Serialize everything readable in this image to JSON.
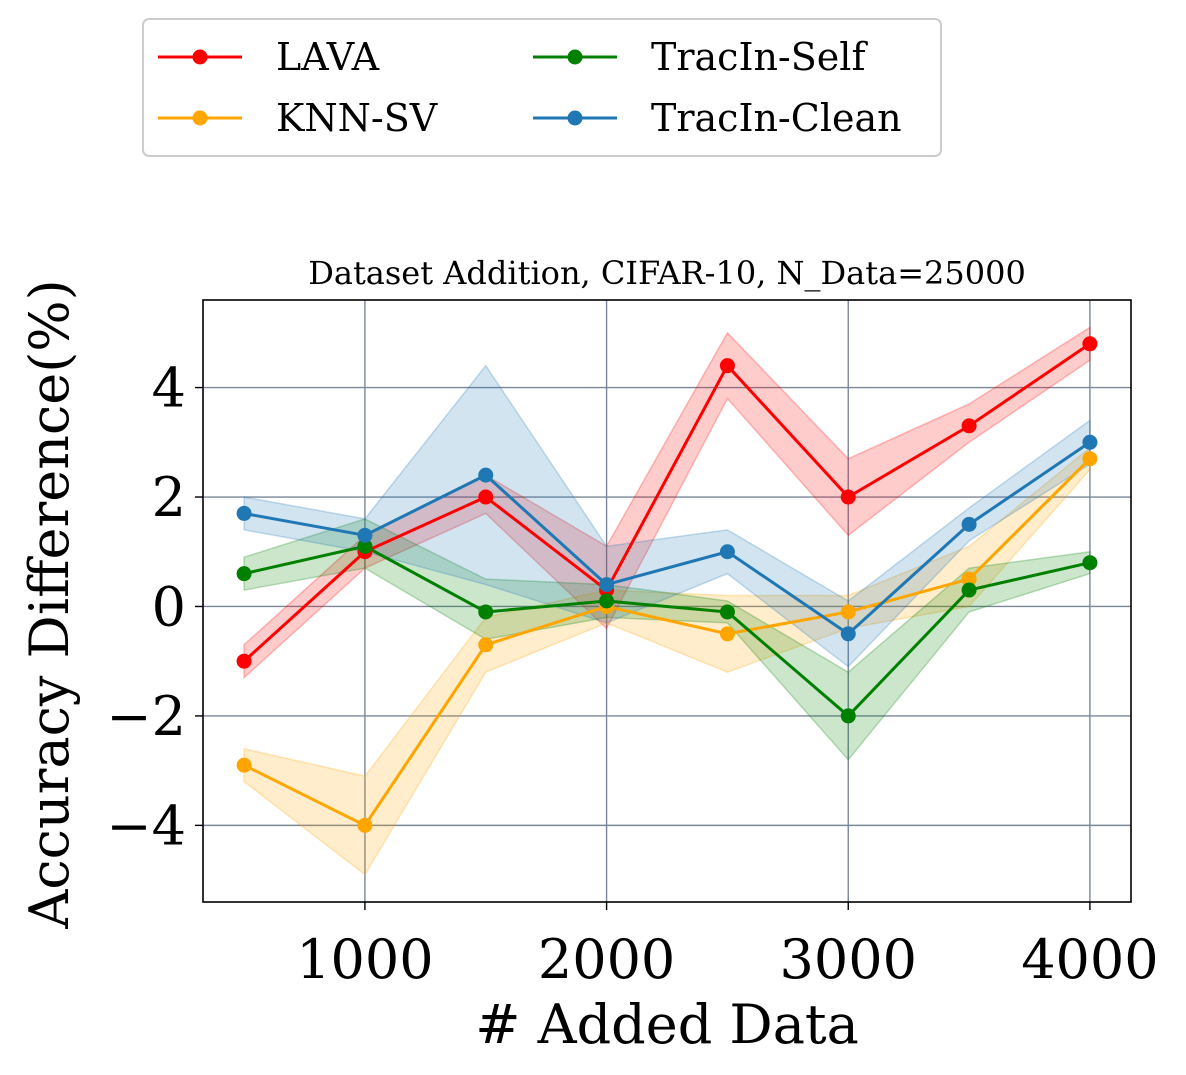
{
  "chart_data": {
    "type": "line",
    "title": "Dataset Addition, CIFAR-10, N_Data=25000",
    "xlabel": "# Added Data",
    "ylabel": "Accuracy Difference(%)",
    "xlim": [
      330,
      4170
    ],
    "ylim": [
      -5.4,
      5.6
    ],
    "xticks": [
      1000,
      2000,
      3000,
      4000
    ],
    "yticks": [
      -4,
      -2,
      0,
      2,
      4
    ],
    "xtick_labels": [
      "1000",
      "2000",
      "3000",
      "4000"
    ],
    "ytick_labels": [
      "−4",
      "−2",
      "0",
      "2",
      "4"
    ],
    "grid": true,
    "legend_placement": "top, above plot, two columns",
    "x": [
      500,
      1000,
      1500,
      2000,
      2500,
      3000,
      3500,
      4000
    ],
    "series": [
      {
        "name": "LAVA",
        "color": "#ff0000",
        "values": [
          -1.0,
          1.0,
          2.0,
          0.3,
          4.4,
          2.0,
          3.3,
          4.8
        ],
        "band_lower": [
          -1.3,
          0.7,
          1.7,
          -0.4,
          3.8,
          1.3,
          3.0,
          4.5
        ],
        "band_upper": [
          -0.7,
          1.3,
          2.4,
          1.1,
          5.0,
          2.7,
          3.7,
          5.1
        ]
      },
      {
        "name": "KNN-SV",
        "color": "#ffa500",
        "values": [
          -2.9,
          -4.0,
          -0.7,
          0.0,
          -0.5,
          -0.1,
          0.5,
          2.7
        ],
        "band_lower": [
          -3.2,
          -4.9,
          -1.2,
          -0.3,
          -1.2,
          -0.4,
          0.0,
          2.5
        ],
        "band_upper": [
          -2.6,
          -3.1,
          -0.2,
          0.3,
          0.2,
          0.2,
          1.1,
          2.9
        ]
      },
      {
        "name": "TracIn-Self",
        "color": "#008000",
        "values": [
          0.6,
          1.1,
          -0.1,
          0.1,
          -0.1,
          -2.0,
          0.3,
          0.8
        ],
        "band_lower": [
          0.3,
          0.7,
          -0.6,
          -0.2,
          -0.3,
          -2.8,
          -0.1,
          0.6
        ],
        "band_upper": [
          0.9,
          1.6,
          0.5,
          0.4,
          0.1,
          -1.2,
          0.7,
          1.0
        ]
      },
      {
        "name": "TracIn-Clean",
        "color": "#1f77b4",
        "values": [
          1.7,
          1.3,
          2.4,
          0.4,
          1.0,
          -0.5,
          1.5,
          3.0
        ],
        "band_lower": [
          1.4,
          1.0,
          0.4,
          -0.3,
          0.6,
          -1.1,
          1.2,
          2.6
        ],
        "band_upper": [
          2.0,
          1.6,
          4.4,
          1.1,
          1.4,
          0.1,
          1.8,
          3.4
        ]
      }
    ]
  }
}
